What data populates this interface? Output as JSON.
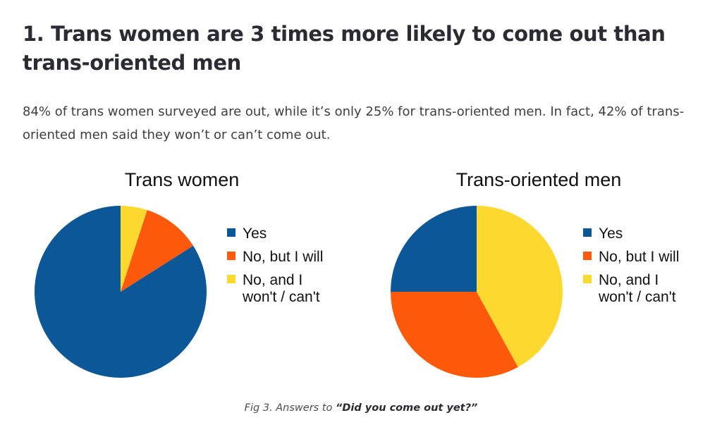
{
  "article": {
    "headline": "1. Trans women are 3 times more likely to come out than trans-oriented men",
    "intro": "84% of trans women surveyed are out, while it’s only 25% for trans-oriented men. In fact, 42% of trans-oriented men said they won’t or can’t come out.",
    "caption_prefix": "Fig 3. Answers to ",
    "caption_question": "“Did you come out yet?”"
  },
  "colors": {
    "Yes": "#0b5797",
    "No, but I will": "#ff5a0c",
    "No, and I won't / can't": "#fdd92f"
  },
  "chart_data": [
    {
      "type": "pie",
      "title": "Trans women",
      "legend_position": "right",
      "categories": [
        "Yes",
        "No, but I will",
        "No, and I won't / can't"
      ],
      "values": [
        84,
        11,
        5
      ],
      "legend": [
        "Yes",
        "No, but I will",
        "No, and I won't / can't"
      ]
    },
    {
      "type": "pie",
      "title": "Trans-oriented men",
      "legend_position": "right",
      "categories": [
        "Yes",
        "No, but I will",
        "No, and I won't / can't"
      ],
      "values": [
        25,
        33,
        42
      ],
      "legend": [
        "Yes",
        "No, but I will",
        "No, and I won't / can't"
      ]
    }
  ]
}
